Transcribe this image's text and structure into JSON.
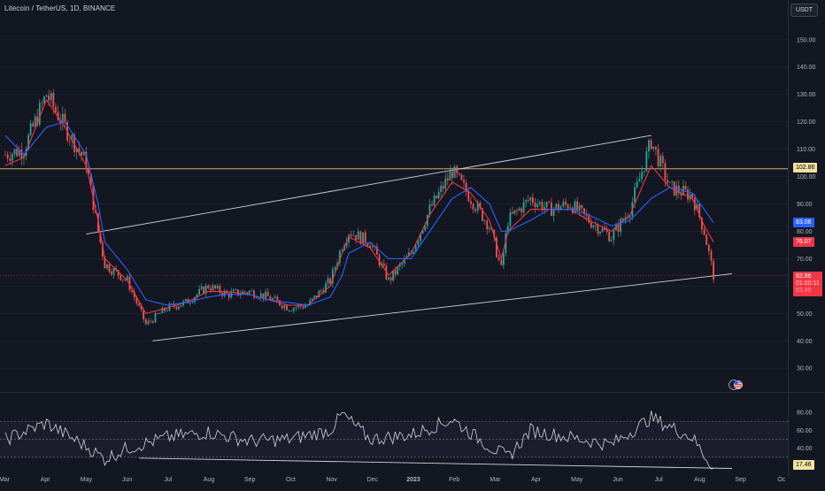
{
  "header": {
    "symbol": "Litecoin / TetherUS, 1D, BINANCE",
    "currency": "USDT"
  },
  "price_axis": {
    "ticks": [
      "150.00",
      "140.00",
      "130.00",
      "120.00",
      "110.00",
      "100.00",
      "90.00",
      "80.00",
      "70.00",
      "60.00",
      "50.00",
      "40.00",
      "30.00"
    ]
  },
  "rsi_axis": {
    "ticks": [
      "80.00",
      "60.00",
      "40.00"
    ]
  },
  "time_axis": {
    "labels": [
      "Mar",
      "Apr",
      "May",
      "Jun",
      "Jul",
      "Aug",
      "Sep",
      "Oct",
      "Nov",
      "Dec",
      "2023",
      "Feb",
      "Mar",
      "Apr",
      "May",
      "Jun",
      "Jul",
      "Aug",
      "Sep",
      "Oc"
    ]
  },
  "tags": {
    "resistance": "102.86",
    "ma_blue": "83.06",
    "ma_red": "76.07",
    "last_price": "63.96",
    "countdown": "01:00:11",
    "hidden": "63.89",
    "rsi": "17.46"
  },
  "colors": {
    "background": "#131722",
    "up": "#26a69a",
    "down": "#ef5350",
    "ma_blue": "#2962ff",
    "ma_red": "#f23645",
    "resistance": "#c9b458",
    "channel": "#d1d4dc",
    "rsi_band": "#1e1e2e"
  },
  "icons": {
    "flag": "us-flag-icon"
  },
  "chart_data": [
    {
      "type": "candlestick",
      "title": "Litecoin / TetherUS, 1D, BINANCE",
      "y_unit": "USDT",
      "ylim": [
        22,
        158
      ],
      "x_range": [
        "2022-03",
        "2023-10"
      ],
      "x": [
        "2022-03-01",
        "2022-03-15",
        "2022-04-01",
        "2022-04-15",
        "2022-05-01",
        "2022-05-10",
        "2022-05-15",
        "2022-06-01",
        "2022-06-15",
        "2022-07-01",
        "2022-07-15",
        "2022-08-01",
        "2022-08-15",
        "2022-09-01",
        "2022-09-15",
        "2022-10-01",
        "2022-10-15",
        "2022-11-01",
        "2022-11-10",
        "2022-11-15",
        "2022-12-01",
        "2022-12-15",
        "2023-01-01",
        "2023-01-15",
        "2023-02-01",
        "2023-02-15",
        "2023-03-01",
        "2023-03-10",
        "2023-03-15",
        "2023-04-01",
        "2023-04-15",
        "2023-05-01",
        "2023-05-15",
        "2023-06-01",
        "2023-06-15",
        "2023-07-01",
        "2023-07-15",
        "2023-08-01",
        "2023-08-10",
        "2023-08-17"
      ],
      "close": [
        108,
        110,
        130,
        118,
        105,
        80,
        68,
        62,
        46,
        52,
        54,
        60,
        57,
        58,
        56,
        52,
        53,
        62,
        75,
        80,
        76,
        62,
        72,
        88,
        102,
        92,
        82,
        66,
        84,
        92,
        88,
        90,
        84,
        78,
        88,
        113,
        96,
        93,
        80,
        63.96
      ],
      "series": [
        {
          "name": "",
          "role": "short moving average (red)",
          "values": [
            104,
            107,
            128,
            118,
            104,
            84,
            70,
            62,
            50,
            52,
            54,
            58,
            58,
            57,
            55,
            53,
            53,
            60,
            72,
            78,
            74,
            64,
            72,
            86,
            98,
            94,
            84,
            70,
            80,
            88,
            88,
            88,
            84,
            80,
            86,
            104,
            96,
            92,
            82,
            76.07
          ]
        },
        {
          "name": "",
          "role": "long moving average (blue)",
          "values": [
            115,
            108,
            118,
            120,
            108,
            90,
            76,
            66,
            55,
            53,
            54,
            56,
            57,
            57,
            55,
            54,
            53,
            56,
            64,
            72,
            76,
            70,
            70,
            80,
            92,
            96,
            90,
            80,
            80,
            84,
            88,
            88,
            86,
            82,
            84,
            92,
            96,
            94,
            88,
            83.06
          ]
        }
      ],
      "horizontal_lines": [
        {
          "value": 102.86,
          "label": "102.86"
        },
        {
          "value": 63.96,
          "label": "63.96"
        }
      ],
      "trendlines": [
        {
          "from": [
            "2022-05-01",
            79
          ],
          "to": [
            "2023-07-01",
            115
          ]
        },
        {
          "from": [
            "2022-06-20",
            40
          ],
          "to": [
            "2023-08-31",
            64.5
          ]
        }
      ]
    },
    {
      "type": "line",
      "title": "RSI",
      "ylim": [
        17,
        90
      ],
      "bands": [
        30,
        50,
        70
      ],
      "x": [
        "2022-03-01",
        "2022-04-01",
        "2022-05-01",
        "2022-05-15",
        "2022-06-01",
        "2022-07-01",
        "2022-08-01",
        "2022-09-01",
        "2022-10-01",
        "2022-11-01",
        "2022-11-10",
        "2022-12-01",
        "2023-01-01",
        "2023-02-01",
        "2023-03-01",
        "2023-03-15",
        "2023-04-01",
        "2023-05-01",
        "2023-06-01",
        "2023-07-01",
        "2023-08-01",
        "2023-08-17"
      ],
      "values": [
        50,
        68,
        42,
        28,
        40,
        52,
        58,
        48,
        50,
        60,
        78,
        50,
        55,
        72,
        42,
        30,
        60,
        52,
        44,
        74,
        52,
        17.46
      ],
      "trendlines": [
        {
          "from": [
            "2022-06-10",
            29
          ],
          "to": [
            "2023-08-31",
            17.5
          ]
        }
      ]
    }
  ]
}
